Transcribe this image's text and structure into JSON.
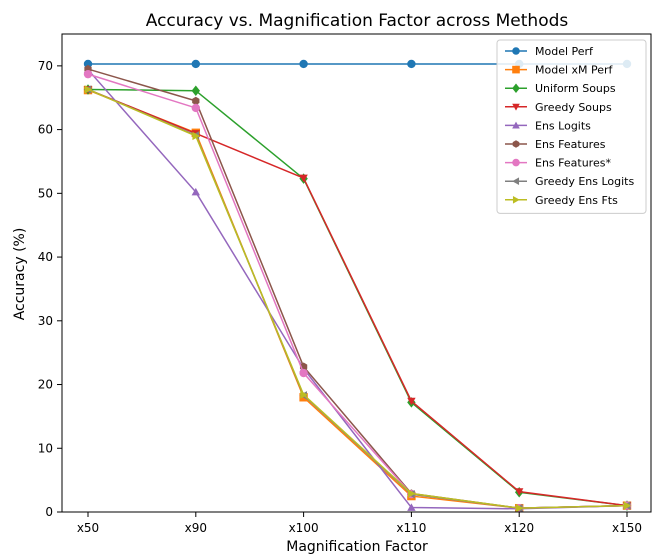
{
  "chart_data": {
    "type": "line",
    "title": "Accuracy vs. Magnification Factor across Methods",
    "xlabel": "Magnification Factor",
    "ylabel": "Accuracy (%)",
    "categories": [
      "x50",
      "x90",
      "x100",
      "x110",
      "x120",
      "x150"
    ],
    "ylim": [
      0,
      75
    ],
    "yticks": [
      0,
      10,
      20,
      30,
      40,
      50,
      60,
      70
    ],
    "grid": false,
    "legend_position": "top-right",
    "series": [
      {
        "name": "Model Perf",
        "color": "#1f77b4",
        "marker": "circle",
        "values": [
          70.3,
          70.3,
          70.3,
          70.3,
          70.3,
          70.3
        ]
      },
      {
        "name": "Model xM Perf",
        "color": "#ff7f0e",
        "marker": "square",
        "values": [
          66.2,
          59.5,
          18.0,
          2.5,
          0.6,
          1.0
        ]
      },
      {
        "name": "Uniform Soups",
        "color": "#2ca02c",
        "marker": "diamond",
        "values": [
          66.3,
          66.1,
          52.3,
          17.2,
          3.1,
          1.0
        ]
      },
      {
        "name": "Greedy Soups",
        "color": "#d62728",
        "marker": "triangle-down",
        "values": [
          66.3,
          59.4,
          52.4,
          17.4,
          3.2,
          1.0
        ]
      },
      {
        "name": "Ens Logits",
        "color": "#9467bd",
        "marker": "triangle-up",
        "values": [
          69.4,
          50.2,
          22.5,
          0.7,
          0.5,
          1.0
        ]
      },
      {
        "name": "Ens Features",
        "color": "#8c564b",
        "marker": "hexagon",
        "values": [
          69.5,
          64.5,
          22.8,
          2.9,
          0.6,
          1.0
        ]
      },
      {
        "name": "Ens Features*",
        "color": "#e377c2",
        "marker": "circle",
        "values": [
          68.7,
          63.4,
          21.8,
          2.8,
          0.6,
          1.0
        ]
      },
      {
        "name": "Greedy Ens Logits",
        "color": "#7f7f7f",
        "marker": "triangle-left",
        "values": [
          66.3,
          59.1,
          18.3,
          2.8,
          0.6,
          1.0
        ]
      },
      {
        "name": "Greedy Ens Fts",
        "color": "#bcbd22",
        "marker": "triangle-right",
        "values": [
          66.3,
          59.0,
          18.4,
          2.9,
          0.6,
          1.0
        ]
      }
    ]
  }
}
